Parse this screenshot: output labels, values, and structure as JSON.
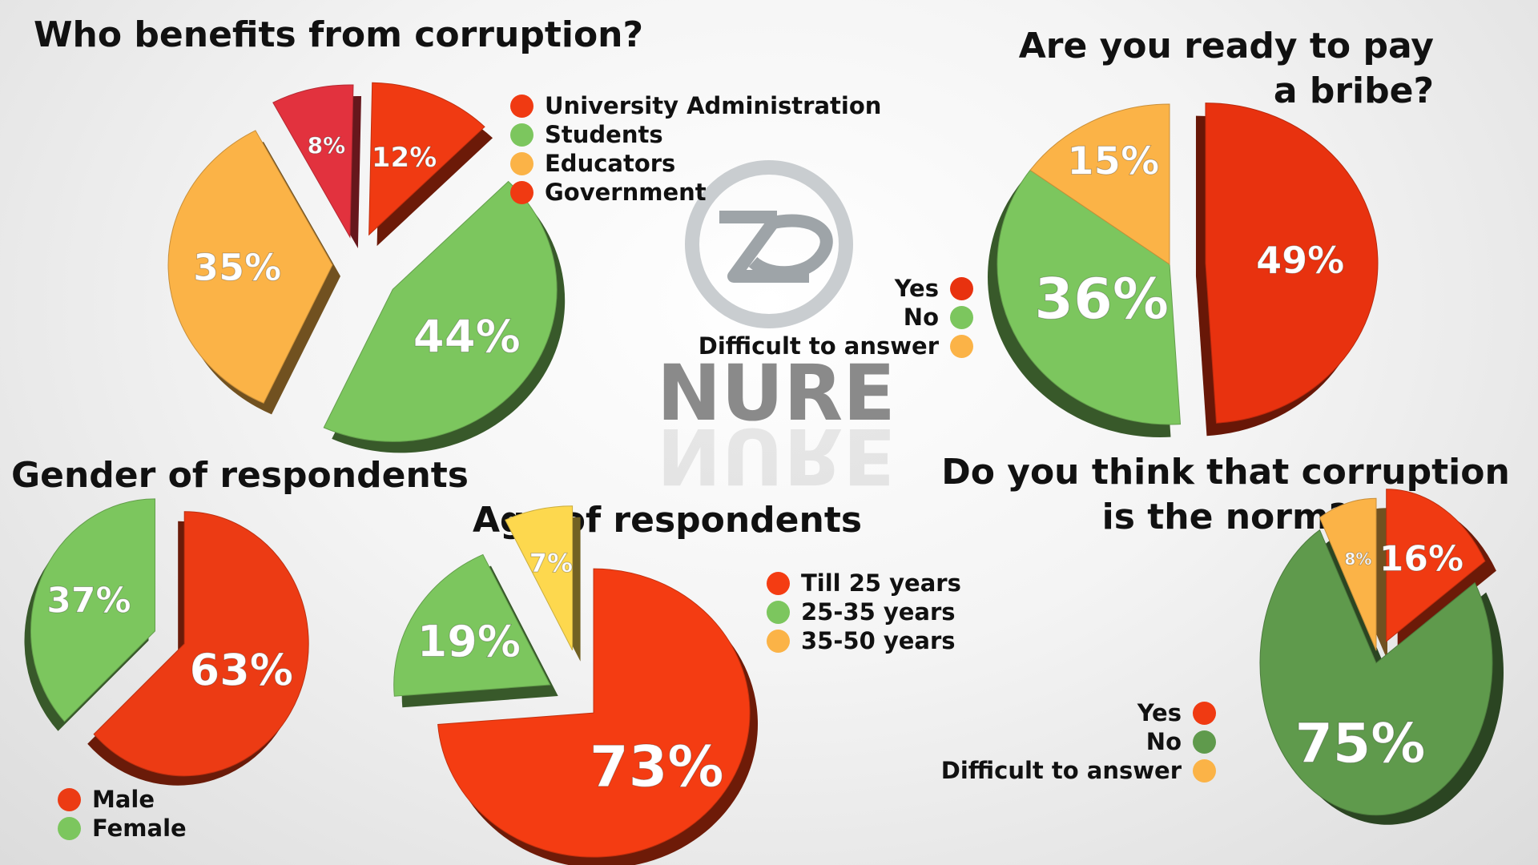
{
  "colors": {
    "red": "#f03a12",
    "green": "#7cc65e",
    "orange": "#fbb347",
    "yellow": "#fdd84e",
    "crimson": "#e2323e",
    "dark_green": "#5f9a4c"
  },
  "watermark": {
    "text": "NURE",
    "icon": "nure-logo-icon"
  },
  "chart_data": [
    {
      "type": "pie",
      "title": "Who benefits from corruption?",
      "legend": [
        "University Administration",
        "Students",
        "Educators",
        "Government"
      ],
      "slices": [
        {
          "label": "12%",
          "value": 12,
          "color": "#f03a12"
        },
        {
          "label": "44%",
          "value": 44,
          "color": "#7cc65e"
        },
        {
          "label": "35%",
          "value": 35,
          "color": "#fbb347"
        },
        {
          "label": "8%",
          "value": 8,
          "color": "#e2323e"
        }
      ]
    },
    {
      "type": "pie",
      "title": "Are you ready to pay a bribe?",
      "legend": [
        "Yes",
        "No",
        "Difficult to answer"
      ],
      "slices": [
        {
          "label": "49%",
          "value": 49,
          "color": "#e8320f"
        },
        {
          "label": "36%",
          "value": 36,
          "color": "#7cc65e"
        },
        {
          "label": "15%",
          "value": 15,
          "color": "#fbb347"
        }
      ]
    },
    {
      "type": "pie",
      "title": "Gender of respondents",
      "legend": [
        "Male",
        "Female"
      ],
      "slices": [
        {
          "label": "63%",
          "value": 63,
          "color": "#ec3b14"
        },
        {
          "label": "37%",
          "value": 37,
          "color": "#7cc65e"
        }
      ]
    },
    {
      "type": "pie",
      "title": "Age of respondents",
      "legend": [
        "Till 25 years",
        "25-35 years",
        "35-50 years"
      ],
      "slices": [
        {
          "label": "73%",
          "value": 73,
          "color": "#f43c12"
        },
        {
          "label": "19%",
          "value": 19,
          "color": "#7cc65e"
        },
        {
          "label": "7%",
          "value": 7,
          "color": "#fdd84e"
        }
      ]
    },
    {
      "type": "pie",
      "title": "Do you think that corruption is the norm?",
      "legend": [
        "Yes",
        "No",
        "Difficult to answer"
      ],
      "slices": [
        {
          "label": "16%",
          "value": 16,
          "color": "#f03a12"
        },
        {
          "label": "75%",
          "value": 75,
          "color": "#5f9a4c"
        },
        {
          "label": "8%",
          "value": 8,
          "color": "#fbb347"
        }
      ]
    }
  ]
}
